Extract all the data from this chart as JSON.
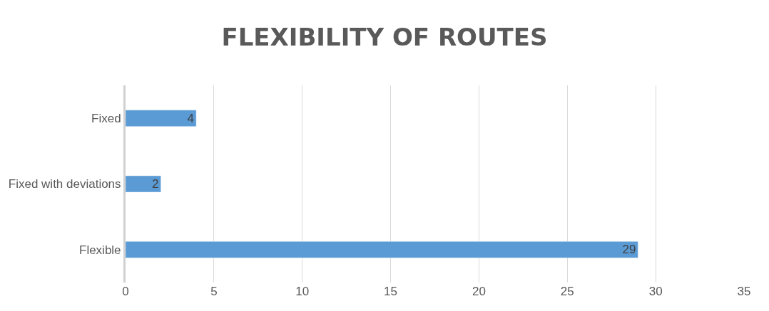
{
  "chart_data": {
    "type": "bar",
    "orientation": "horizontal",
    "title": "FLEXIBILITY OF ROUTES",
    "categories": [
      "Fixed",
      "Fixed with deviations",
      "Flexible"
    ],
    "values": [
      4,
      2,
      29
    ],
    "color": "#5b9bd5",
    "xlim": [
      0,
      35
    ],
    "xticks": [
      0,
      5,
      10,
      15,
      20,
      25,
      30,
      35
    ],
    "grid": "x",
    "data_labels": true,
    "legend": false
  }
}
